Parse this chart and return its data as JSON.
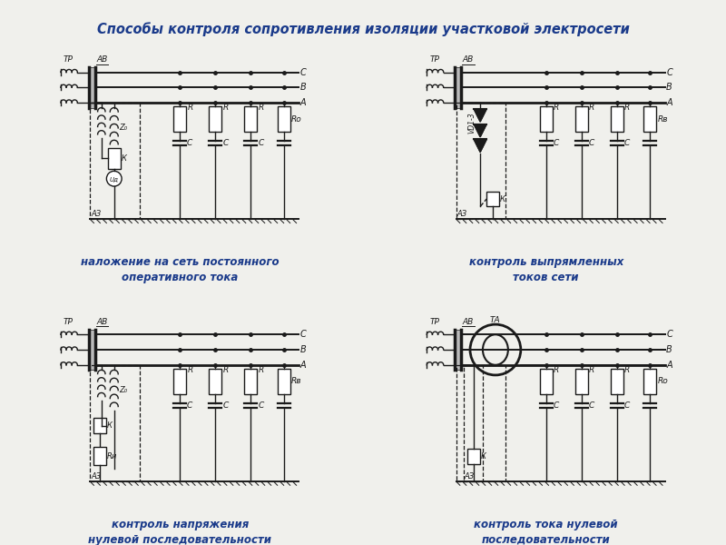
{
  "title": "Способы контроля сопротивления изоляции участковой электросети",
  "title_color": "#1a3a8a",
  "bg_color": "#f0f0ec",
  "line_color": "#1a1a1a",
  "text_color": "#1a1a1a",
  "captions": [
    "наложение на сеть постоянного\nоперативного тока",
    "контроль выпрямленных\nтоков сети",
    "контроль напряжения\nнулевой последовательности",
    "контроль тока нулевой\nпоследовательности"
  ],
  "caption_color": "#1a3a8a",
  "Ro_variants": [
    "Rо",
    "Rв",
    "Rв",
    "Rо"
  ]
}
